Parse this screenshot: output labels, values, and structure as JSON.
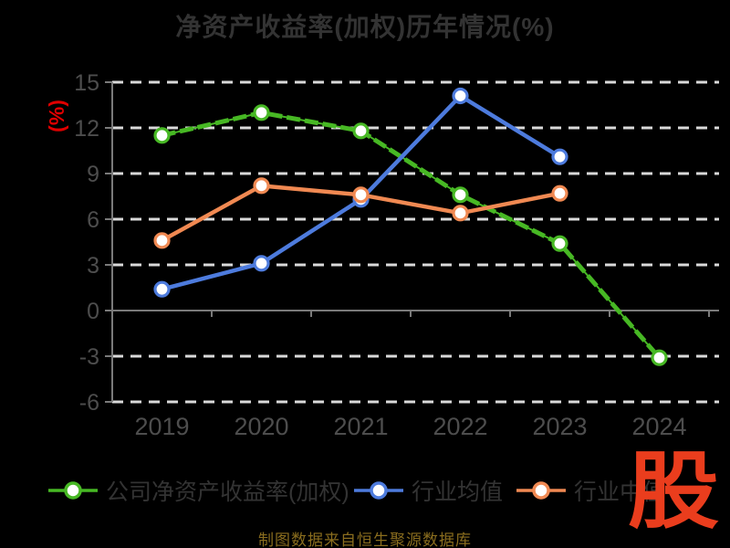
{
  "title": "净资产收益率(加权)历年情况(%)",
  "y_axis_label": "(%)",
  "source_note": "制图数据来自恒生聚源数据库",
  "watermark": "股",
  "colors": {
    "background": "#000000",
    "title_text": "#333333",
    "axis_line": "#7a7a7a",
    "grid_line": "#d9d9d9",
    "tick_label": "#4d4d4d",
    "y_unit_label": "#e00000",
    "source_text": "#8a6d1e",
    "watermark": "#ea3d1d",
    "marker_fill": "#ffffff"
  },
  "chart_data": {
    "type": "line",
    "title": "净资产收益率(加权)历年情况(%)",
    "ylabel": "(%)",
    "xlabel": "",
    "categories": [
      "2019",
      "2020",
      "2021",
      "2022",
      "2023",
      "2024"
    ],
    "y_ticks": [
      15,
      12,
      9,
      6,
      3,
      0,
      -3,
      -6
    ],
    "ylim": [
      -6,
      15
    ],
    "grid": "horizontal dashed white lines at every tick except 0; solid zero axis line",
    "legend_position": "bottom",
    "series": [
      {
        "name": "公司净资产收益率(加权)",
        "color": "#47b824",
        "line_style": "long-dash over thin solid",
        "values": [
          11.5,
          13.0,
          11.8,
          7.6,
          4.4,
          -3.1
        ]
      },
      {
        "name": "行业均值",
        "color": "#4d7bdd",
        "line_style": "solid",
        "values": [
          1.4,
          3.1,
          7.3,
          14.1,
          10.1,
          null
        ]
      },
      {
        "name": "行业中值",
        "color": "#f08952",
        "line_style": "solid",
        "values": [
          4.6,
          8.2,
          7.6,
          6.4,
          7.7,
          null
        ]
      }
    ]
  }
}
